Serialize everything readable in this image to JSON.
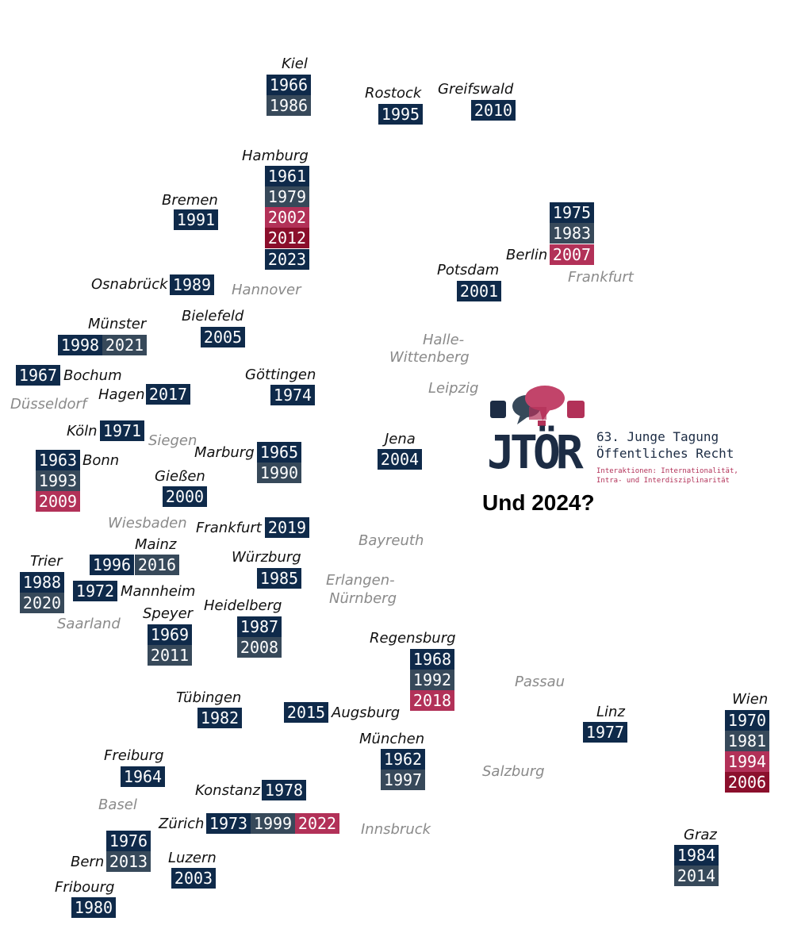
{
  "colors": {
    "navy": "#0f2a4a",
    "slate": "#37495a",
    "rose": "#b23158",
    "crimson": "#8b0f2c"
  },
  "places": {
    "kiel": "Kiel",
    "rostock": "Rostock",
    "greifswald": "Greifswald",
    "hamburg": "Hamburg",
    "bremen": "Bremen",
    "berlin": "Berlin",
    "potsdam": "Potsdam",
    "frankfurt_oder": "Frankfurt",
    "osnabrueck": "Osnabrück",
    "hannover": "Hannover",
    "bielefeld": "Bielefeld",
    "muenster": "Münster",
    "halle_1": "Halle-",
    "halle_2": "Wittenberg",
    "bochum": "Bochum",
    "duesseldorf": "Düsseldorf",
    "hagen": "Hagen",
    "goettingen": "Göttingen",
    "leipzig": "Leipzig",
    "koeln": "Köln",
    "siegen": "Siegen",
    "bonn": "Bonn",
    "marburg": "Marburg",
    "jena": "Jena",
    "giessen": "Gießen",
    "wiesbaden": "Wiesbaden",
    "frankfurt": "Frankfurt",
    "mainz": "Mainz",
    "bayreuth": "Bayreuth",
    "trier": "Trier",
    "wuerzburg": "Würzburg",
    "mannheim": "Mannheim",
    "erlangen_1": "Erlangen-",
    "erlangen_2": "Nürnberg",
    "speyer": "Speyer",
    "heidelberg": "Heidelberg",
    "saarland": "Saarland",
    "regensburg": "Regensburg",
    "passau": "Passau",
    "tuebingen": "Tübingen",
    "augsburg": "Augsburg",
    "linz": "Linz",
    "wien": "Wien",
    "muenchen": "München",
    "freiburg": "Freiburg",
    "salzburg": "Salzburg",
    "konstanz": "Konstanz",
    "basel": "Basel",
    "zuerich": "Zürich",
    "innsbruck": "Innsbruck",
    "bern": "Bern",
    "luzern": "Luzern",
    "graz": "Graz",
    "fribourg": "Fribourg"
  },
  "years": {
    "kiel": [
      "1966",
      "1986"
    ],
    "rostock": [
      "1995"
    ],
    "greifswald": [
      "2010"
    ],
    "hamburg": [
      "1961",
      "1979",
      "2002",
      "2012",
      "2023"
    ],
    "bremen": [
      "1991"
    ],
    "berlin": [
      "1975",
      "1983",
      "2007"
    ],
    "potsdam": [
      "2001"
    ],
    "osnabrueck": [
      "1989"
    ],
    "bielefeld": [
      "2005"
    ],
    "muenster": [
      "1998",
      "2021"
    ],
    "bochum": [
      "1967"
    ],
    "hagen": [
      "2017"
    ],
    "goettingen": [
      "1974"
    ],
    "koeln": [
      "1971"
    ],
    "bonn": [
      "1963",
      "1993",
      "2009"
    ],
    "marburg": [
      "1965",
      "1990"
    ],
    "jena": [
      "2004"
    ],
    "giessen": [
      "2000"
    ],
    "frankfurt": [
      "2019"
    ],
    "mainz": [
      "1996",
      "2016"
    ],
    "trier": [
      "1988",
      "2020"
    ],
    "wuerzburg": [
      "1985"
    ],
    "mannheim": [
      "1972"
    ],
    "speyer": [
      "1969",
      "2011"
    ],
    "heidelberg": [
      "1987",
      "2008"
    ],
    "regensburg": [
      "1968",
      "1992",
      "2018"
    ],
    "tuebingen": [
      "1982"
    ],
    "augsburg": [
      "2015"
    ],
    "linz": [
      "1977"
    ],
    "wien": [
      "1970",
      "1981",
      "1994",
      "2006"
    ],
    "muenchen": [
      "1962",
      "1997"
    ],
    "freiburg": [
      "1964"
    ],
    "konstanz": [
      "1978"
    ],
    "zuerich": [
      "1973",
      "1999",
      "2022"
    ],
    "bern": [
      "1976",
      "2013"
    ],
    "luzern": [
      "2003"
    ],
    "graz": [
      "1984",
      "2014"
    ],
    "fribourg": [
      "1980"
    ]
  },
  "logo": {
    "text": "JTÖR",
    "title_line1": "63. Junge Tagung",
    "title_line2": "Öffentliches Recht",
    "subtitle_line1": "Interaktionen: Internationalität,",
    "subtitle_line2": "Intra- und Interdisziplinarität"
  },
  "question": "Und 2024?"
}
